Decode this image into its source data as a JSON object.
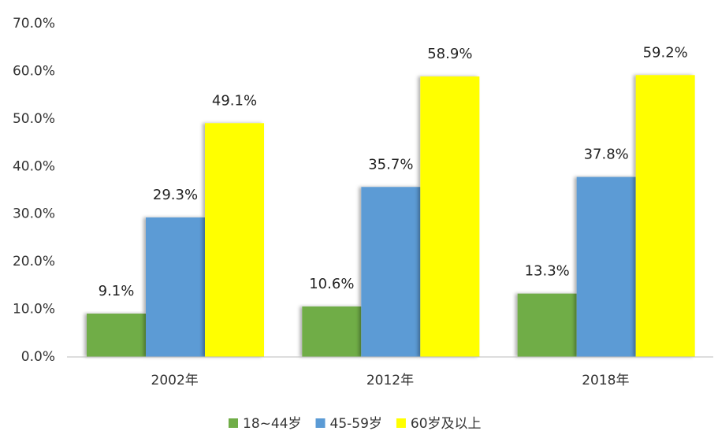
{
  "chart_data": {
    "type": "bar",
    "categories": [
      "2002年",
      "2012年",
      "2018年"
    ],
    "series": [
      {
        "name": "18~44岁",
        "color": "#70ad47",
        "values": [
          9.1,
          10.6,
          13.3
        ],
        "value_labels": [
          "9.1%",
          "10.6%",
          "13.3%"
        ]
      },
      {
        "name": "45-59岁",
        "color": "#5b9bd5",
        "values": [
          29.3,
          35.7,
          37.8
        ],
        "value_labels": [
          "29.3%",
          "35.7%",
          "37.8%"
        ]
      },
      {
        "name": "60岁及以上",
        "color": "#ffff00",
        "values": [
          49.1,
          58.9,
          59.2
        ],
        "value_labels": [
          "49.1%",
          "58.9%",
          "59.2%"
        ]
      }
    ],
    "ylim": [
      0,
      70
    ],
    "yticks": [
      {
        "value": 0,
        "label": "0.0%"
      },
      {
        "value": 10,
        "label": "10.0%"
      },
      {
        "value": 20,
        "label": "20.0%"
      },
      {
        "value": 30,
        "label": "30.0%"
      },
      {
        "value": 40,
        "label": "40.0%"
      },
      {
        "value": 50,
        "label": "50.0%"
      },
      {
        "value": 60,
        "label": "60.0%"
      },
      {
        "value": 70,
        "label": "70.0%"
      }
    ],
    "grid": false,
    "legend": "bottom"
  }
}
